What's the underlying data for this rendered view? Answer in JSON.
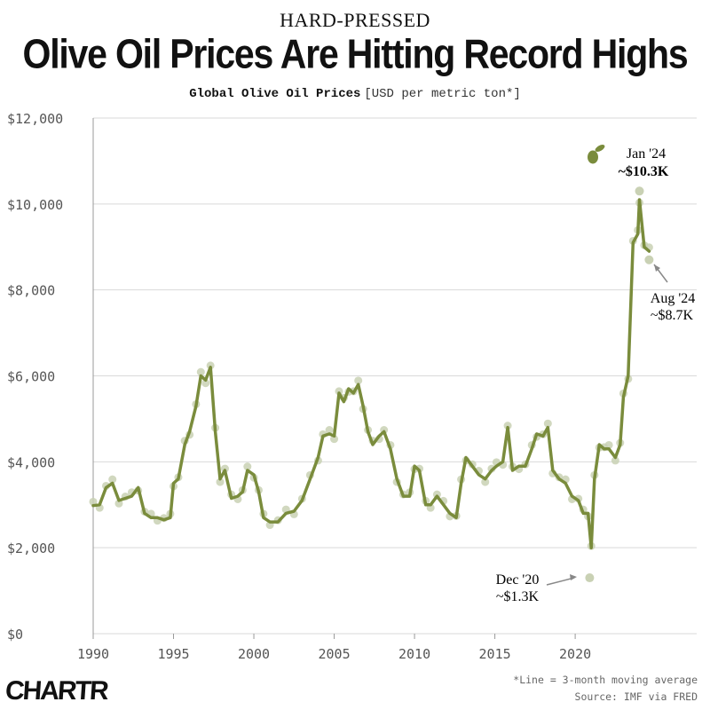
{
  "header": {
    "kicker": "HARD-PRESSED",
    "title": "Olive Oil Prices Are Hitting Record Highs",
    "subtitle_main": "Global Olive Oil Prices",
    "subtitle_unit": "[USD per metric ton*]"
  },
  "footer": {
    "note": "*Line = 3-month moving average",
    "source": "Source: IMF via FRED",
    "brand": "CHARTR"
  },
  "colors": {
    "line": "#7a8c3c",
    "dots": "#c9d1b4",
    "grid": "#d9d9d9",
    "axis_text": "#555555"
  },
  "chart_data": {
    "type": "line",
    "title": "Global Olive Oil Prices",
    "ylabel": "USD per metric ton",
    "xlim": [
      1990,
      2024.8
    ],
    "ylim": [
      0,
      12000
    ],
    "x_ticks": [
      "1990",
      "1995",
      "2000",
      "2005",
      "2010",
      "2015",
      "2020"
    ],
    "y_ticks": [
      "$0",
      "$2,000",
      "$4,000",
      "$6,000",
      "$8,000",
      "$10,000",
      "$12,000"
    ],
    "grid": "horizontal",
    "series": [
      {
        "name": "3-month moving average",
        "points": [
          [
            1990.0,
            2980
          ],
          [
            1990.4,
            3000
          ],
          [
            1990.8,
            3400
          ],
          [
            1991.2,
            3500
          ],
          [
            1991.6,
            3100
          ],
          [
            1992.0,
            3150
          ],
          [
            1992.4,
            3200
          ],
          [
            1992.8,
            3400
          ],
          [
            1993.2,
            2800
          ],
          [
            1993.6,
            2700
          ],
          [
            1994.0,
            2700
          ],
          [
            1994.4,
            2650
          ],
          [
            1994.8,
            2700
          ],
          [
            1995.0,
            3500
          ],
          [
            1995.3,
            3600
          ],
          [
            1995.7,
            4400
          ],
          [
            1996.0,
            4700
          ],
          [
            1996.4,
            5300
          ],
          [
            1996.7,
            6000
          ],
          [
            1997.0,
            5900
          ],
          [
            1997.3,
            6200
          ],
          [
            1997.6,
            4700
          ],
          [
            1997.9,
            3600
          ],
          [
            1998.2,
            3800
          ],
          [
            1998.6,
            3150
          ],
          [
            1999.0,
            3200
          ],
          [
            1999.3,
            3300
          ],
          [
            1999.6,
            3800
          ],
          [
            2000.0,
            3700
          ],
          [
            2000.3,
            3300
          ],
          [
            2000.6,
            2700
          ],
          [
            2001.0,
            2600
          ],
          [
            2001.5,
            2600
          ],
          [
            2002.0,
            2800
          ],
          [
            2002.5,
            2850
          ],
          [
            2003.0,
            3100
          ],
          [
            2003.5,
            3600
          ],
          [
            2004.0,
            4100
          ],
          [
            2004.3,
            4600
          ],
          [
            2004.7,
            4650
          ],
          [
            2005.0,
            4600
          ],
          [
            2005.3,
            5600
          ],
          [
            2005.6,
            5400
          ],
          [
            2005.9,
            5700
          ],
          [
            2006.2,
            5600
          ],
          [
            2006.5,
            5800
          ],
          [
            2006.8,
            5300
          ],
          [
            2007.1,
            4700
          ],
          [
            2007.4,
            4400
          ],
          [
            2007.8,
            4600
          ],
          [
            2008.1,
            4700
          ],
          [
            2008.5,
            4300
          ],
          [
            2008.9,
            3600
          ],
          [
            2009.3,
            3200
          ],
          [
            2009.7,
            3200
          ],
          [
            2010.0,
            3900
          ],
          [
            2010.3,
            3800
          ],
          [
            2010.7,
            3000
          ],
          [
            2011.0,
            3000
          ],
          [
            2011.4,
            3200
          ],
          [
            2011.8,
            3000
          ],
          [
            2012.2,
            2800
          ],
          [
            2012.6,
            2700
          ],
          [
            2012.9,
            3500
          ],
          [
            2013.2,
            4100
          ],
          [
            2013.6,
            3900
          ],
          [
            2014.0,
            3700
          ],
          [
            2014.4,
            3600
          ],
          [
            2014.8,
            3800
          ],
          [
            2015.1,
            3900
          ],
          [
            2015.5,
            4000
          ],
          [
            2015.8,
            4800
          ],
          [
            2016.1,
            3800
          ],
          [
            2016.5,
            3900
          ],
          [
            2016.9,
            3900
          ],
          [
            2017.3,
            4300
          ],
          [
            2017.6,
            4650
          ],
          [
            2018.0,
            4600
          ],
          [
            2018.3,
            4800
          ],
          [
            2018.6,
            3800
          ],
          [
            2019.0,
            3600
          ],
          [
            2019.4,
            3500
          ],
          [
            2019.8,
            3200
          ],
          [
            2020.2,
            3100
          ],
          [
            2020.5,
            2800
          ],
          [
            2020.8,
            2800
          ],
          [
            2021.0,
            2000
          ],
          [
            2021.2,
            3600
          ],
          [
            2021.5,
            4400
          ],
          [
            2021.8,
            4300
          ],
          [
            2022.1,
            4300
          ],
          [
            2022.5,
            4100
          ],
          [
            2022.8,
            4400
          ],
          [
            2023.0,
            5500
          ],
          [
            2023.3,
            6000
          ],
          [
            2023.6,
            9100
          ],
          [
            2023.9,
            9300
          ],
          [
            2024.0,
            10100
          ],
          [
            2024.3,
            9000
          ],
          [
            2024.6,
            8900
          ]
        ]
      }
    ],
    "annotations": [
      {
        "label_line1": "Jan '24",
        "label_line2": "~$10.3K",
        "x": 2024.0,
        "y": 10300,
        "icon": "olive-icon"
      },
      {
        "label_line1": "Aug '24",
        "label_line2": "~$8.7K",
        "x": 2024.6,
        "y": 8700
      },
      {
        "label_line1": "Dec '20",
        "label_line2": "~$1.3K",
        "x": 2020.9,
        "y": 1300
      }
    ]
  }
}
